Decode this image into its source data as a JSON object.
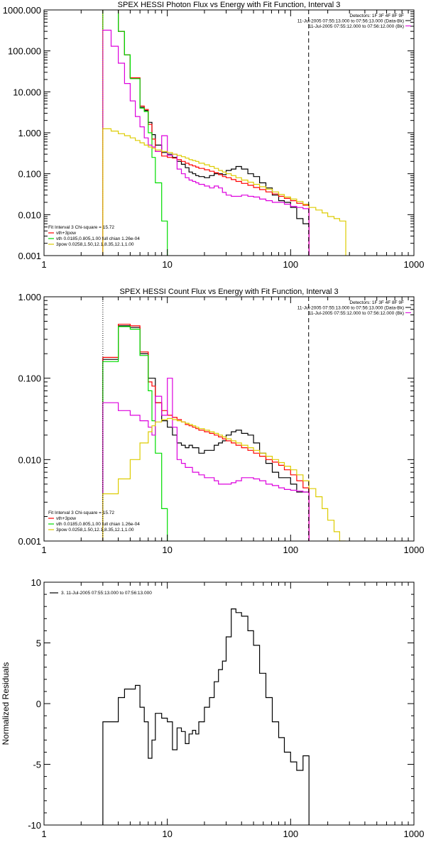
{
  "chart_data": [
    {
      "type": "line",
      "title": "SPEX HESSI Photon Flux vs Energy with Fit Function, Interval 3",
      "xscale": "log",
      "yscale": "log",
      "xlim": [
        1,
        1000
      ],
      "ylim": [
        0.001,
        1000
      ],
      "x_ticks": [
        {
          "v": 1,
          "label": "1"
        },
        {
          "v": 10,
          "label": "10"
        },
        {
          "v": 100,
          "label": "100"
        },
        {
          "v": 1000,
          "label": "1000"
        }
      ],
      "y_ticks": [
        {
          "v": 0.001,
          "label": "0.001"
        },
        {
          "v": 0.01,
          "label": "0.010"
        },
        {
          "v": 0.1,
          "label": "0.100"
        },
        {
          "v": 1,
          "label": "1.000"
        },
        {
          "v": 10,
          "label": "10.000"
        },
        {
          "v": 100,
          "label": "100.000"
        },
        {
          "v": 1000,
          "label": "1000.000"
        }
      ],
      "header": [
        "Detectors: 1F 3F 4F 8F 9F",
        "11-Jul-2005 07:55:13.000 to 07:56:13.000 (Data-Bk)",
        "11-Jul-2005 07:55:12.000 to 07:56:12.000 (Bk)"
      ],
      "legend_title": "Fit Interval 3   Chi-square = 15.72",
      "legend": [
        {
          "label": "vth+3pow",
          "color": "#ff0000"
        },
        {
          "label": "vth 0.0185,0.805,1.00  full chian 1.26e-04",
          "color": "#00dd00"
        },
        {
          "label": "3pow 0.0258,1.50,12.1,8.35,12.1,1.00",
          "color": "#ddcc00"
        }
      ],
      "vlines": [
        {
          "x": 3,
          "color": "#ff8800",
          "dash": "1,2"
        },
        {
          "x": 140,
          "color": "#000000",
          "dash": "6,4"
        }
      ],
      "series": [
        {
          "color": "#000000",
          "edges": [
            3,
            3.5,
            4,
            4.5,
            5,
            5.5,
            6,
            6.5,
            7,
            7.5,
            8,
            9,
            10,
            11,
            12,
            13,
            14,
            15,
            16,
            17,
            18,
            20,
            22,
            24,
            26,
            28,
            30,
            33,
            36,
            40,
            45,
            50,
            56,
            63,
            71,
            80,
            89,
            100,
            112,
            126,
            141
          ],
          "values": [
            1100,
            1050,
            300,
            80,
            22,
            22,
            4.2,
            3.5,
            1.8,
            0.9,
            0.5,
            0.33,
            0.3,
            0.25,
            0.2,
            0.17,
            0.14,
            0.11,
            0.1,
            0.09,
            0.085,
            0.08,
            0.09,
            0.1,
            0.1,
            0.095,
            0.12,
            0.13,
            0.15,
            0.13,
            0.1,
            0.085,
            0.06,
            0.045,
            0.03,
            0.022,
            0.02,
            0.015,
            0.008,
            0.006
          ]
        },
        {
          "color": "#ff0000",
          "edges": [
            3,
            3.5,
            4,
            4.5,
            5,
            5.5,
            6,
            6.5,
            7,
            7.5,
            8,
            9,
            10,
            11,
            12,
            13,
            14,
            15,
            16,
            17,
            18,
            20,
            22,
            24,
            26,
            28,
            30,
            33,
            36,
            40,
            45,
            50,
            56,
            63,
            71,
            80,
            89,
            100,
            112,
            126,
            141
          ],
          "values": [
            1200,
            1100,
            300,
            80,
            22,
            22,
            4.5,
            3.7,
            1.6,
            0.7,
            0.35,
            0.27,
            0.25,
            0.24,
            0.22,
            0.2,
            0.18,
            0.165,
            0.155,
            0.145,
            0.135,
            0.125,
            0.115,
            0.105,
            0.095,
            0.085,
            0.08,
            0.072,
            0.065,
            0.058,
            0.052,
            0.046,
            0.041,
            0.036,
            0.032,
            0.028,
            0.025,
            0.022,
            0.019,
            0.017
          ]
        },
        {
          "color": "#00dd00",
          "edges": [
            3,
            3.5,
            4,
            4.5,
            5,
            5.5,
            6,
            6.5,
            7,
            7.5,
            8,
            9,
            10,
            11
          ],
          "values": [
            1150,
            1080,
            300,
            80,
            21,
            21,
            4.0,
            3.3,
            1.0,
            0.25,
            0.06,
            0.007,
            0.0005
          ]
        },
        {
          "color": "#dd00dd",
          "edges": [
            3,
            3.5,
            4,
            4.5,
            5,
            5.5,
            6,
            6.5,
            7,
            7.5,
            8,
            9,
            10,
            11,
            12,
            13,
            14,
            15,
            16,
            17,
            18,
            20,
            22,
            24,
            26,
            28,
            30,
            33,
            36,
            40,
            45,
            50,
            56,
            63,
            71,
            80,
            89,
            100,
            112,
            126,
            141
          ],
          "values": [
            320,
            130,
            50,
            16,
            6,
            2.5,
            1.4,
            0.75,
            0.5,
            0.45,
            0.35,
            0.85,
            0.28,
            0.3,
            0.13,
            0.1,
            0.08,
            0.07,
            0.065,
            0.06,
            0.055,
            0.05,
            0.045,
            0.05,
            0.045,
            0.035,
            0.03,
            0.028,
            0.028,
            0.03,
            0.028,
            0.027,
            0.024,
            0.022,
            0.02,
            0.02,
            0.018,
            0.016,
            0.015,
            0.014
          ]
        },
        {
          "color": "#ddcc00",
          "edges": [
            3,
            3.5,
            4,
            4.5,
            5,
            5.5,
            6,
            6.5,
            7,
            7.5,
            8,
            9,
            10,
            11,
            12,
            13,
            14,
            15,
            16,
            17,
            18,
            20,
            22,
            24,
            26,
            28,
            30,
            33,
            36,
            40,
            45,
            50,
            56,
            63,
            71,
            80,
            89,
            100,
            112,
            126,
            141,
            160,
            180,
            200,
            225,
            250,
            280
          ],
          "values": [
            1.25,
            1.1,
            0.95,
            0.85,
            0.75,
            0.65,
            0.57,
            0.5,
            0.45,
            0.42,
            0.38,
            0.35,
            0.33,
            0.3,
            0.28,
            0.26,
            0.24,
            0.22,
            0.21,
            0.2,
            0.18,
            0.165,
            0.15,
            0.135,
            0.12,
            0.11,
            0.1,
            0.09,
            0.08,
            0.07,
            0.062,
            0.055,
            0.048,
            0.042,
            0.036,
            0.031,
            0.027,
            0.024,
            0.021,
            0.018,
            0.015,
            0.013,
            0.011,
            0.009,
            0.008,
            0.007
          ]
        }
      ]
    },
    {
      "type": "line",
      "title": "SPEX HESSI Count Flux vs Energy with Fit Function, Interval 3",
      "xscale": "log",
      "yscale": "log",
      "xlim": [
        1,
        1000
      ],
      "ylim": [
        0.001,
        1
      ],
      "x_ticks": [
        {
          "v": 1,
          "label": "1"
        },
        {
          "v": 10,
          "label": "10"
        },
        {
          "v": 100,
          "label": "100"
        },
        {
          "v": 1000,
          "label": "1000"
        }
      ],
      "y_ticks": [
        {
          "v": 0.001,
          "label": "0.001"
        },
        {
          "v": 0.01,
          "label": "0.010"
        },
        {
          "v": 0.1,
          "label": "0.100"
        },
        {
          "v": 1,
          "label": "1.000"
        }
      ],
      "header": [
        "Detectors: 1F 3F 4F 8F 9F",
        "11-Jul-2005 07:55:13.000 to 07:56:13.000 (Data-Bk)",
        "11-Jul-2005 07:55:12.000 to 07:56:12.000 (Bk)"
      ],
      "legend_title": "Fit Interval 3   Chi-square = 15.72",
      "legend": [
        {
          "label": "vth+3pow",
          "color": "#ff0000"
        },
        {
          "label": "vth 0.0185,0.805,1.00  full chian 1.26e-04",
          "color": "#00dd00"
        },
        {
          "label": "3pow 0.0258,1.50,12.1,8.35,12.1,1.00",
          "color": "#ddcc00"
        }
      ],
      "vlines": [
        {
          "x": 3,
          "color": "#000000",
          "dash": "1,2"
        },
        {
          "x": 140,
          "color": "#000000",
          "dash": "6,4"
        }
      ],
      "series": [
        {
          "color": "#000000",
          "edges": [
            3,
            3.5,
            4,
            4.5,
            5,
            5.5,
            6,
            6.5,
            7,
            7.5,
            8,
            9,
            10,
            11,
            12,
            13,
            14,
            15,
            16,
            17,
            18,
            20,
            22,
            24,
            26,
            28,
            30,
            33,
            36,
            40,
            45,
            50,
            56,
            63,
            71,
            80,
            89,
            100,
            112,
            126,
            141
          ],
          "values": [
            0.17,
            0.17,
            0.44,
            0.44,
            0.42,
            0.42,
            0.2,
            0.2,
            0.1,
            0.1,
            0.05,
            0.03,
            0.025,
            0.02,
            0.016,
            0.015,
            0.014,
            0.015,
            0.014,
            0.014,
            0.012,
            0.013,
            0.013,
            0.015,
            0.016,
            0.017,
            0.02,
            0.022,
            0.023,
            0.021,
            0.02,
            0.016,
            0.012,
            0.009,
            0.007,
            0.006,
            0.006,
            0.005,
            0.004,
            0.004
          ]
        },
        {
          "color": "#ff0000",
          "edges": [
            3,
            3.5,
            4,
            4.5,
            5,
            5.5,
            6,
            6.5,
            7,
            7.5,
            8,
            9,
            10,
            11,
            12,
            13,
            14,
            15,
            16,
            17,
            18,
            20,
            22,
            24,
            26,
            28,
            30,
            33,
            36,
            40,
            45,
            50,
            56,
            63,
            71,
            80,
            89,
            100,
            112,
            126,
            141
          ],
          "values": [
            0.18,
            0.18,
            0.46,
            0.46,
            0.44,
            0.44,
            0.21,
            0.21,
            0.09,
            0.08,
            0.05,
            0.04,
            0.035,
            0.033,
            0.031,
            0.029,
            0.027,
            0.026,
            0.025,
            0.024,
            0.023,
            0.022,
            0.021,
            0.02,
            0.019,
            0.018,
            0.017,
            0.016,
            0.015,
            0.014,
            0.013,
            0.012,
            0.011,
            0.01,
            0.0093,
            0.0085,
            0.0075,
            0.0065,
            0.0055,
            0.0045
          ]
        },
        {
          "color": "#00dd00",
          "edges": [
            3,
            3.5,
            4,
            4.5,
            5,
            5.5,
            6,
            6.5,
            7,
            7.5,
            8,
            9,
            10,
            11
          ],
          "values": [
            0.16,
            0.16,
            0.43,
            0.43,
            0.4,
            0.4,
            0.19,
            0.19,
            0.07,
            0.03,
            0.012,
            0.0025,
            0.0005
          ]
        },
        {
          "color": "#dd00dd",
          "edges": [
            3,
            3.5,
            4,
            4.5,
            5,
            5.5,
            6,
            6.5,
            7,
            7.5,
            8,
            9,
            10,
            11,
            12,
            13,
            14,
            15,
            16,
            17,
            18,
            20,
            22,
            24,
            26,
            28,
            30,
            33,
            36,
            40,
            45,
            50,
            56,
            63,
            71,
            80,
            89,
            100,
            112,
            126,
            141
          ],
          "values": [
            0.05,
            0.05,
            0.04,
            0.04,
            0.035,
            0.035,
            0.03,
            0.03,
            0.025,
            0.02,
            0.06,
            0.035,
            0.1,
            0.025,
            0.01,
            0.009,
            0.008,
            0.008,
            0.007,
            0.007,
            0.0065,
            0.006,
            0.006,
            0.0055,
            0.005,
            0.005,
            0.005,
            0.0052,
            0.0055,
            0.006,
            0.006,
            0.0058,
            0.0055,
            0.005,
            0.0048,
            0.0045,
            0.0043,
            0.0042,
            0.0041,
            0.004
          ]
        },
        {
          "color": "#ddcc00",
          "edges": [
            3,
            3.5,
            4,
            4.5,
            5,
            5.5,
            6,
            6.5,
            7,
            7.5,
            8,
            9,
            10,
            11,
            12,
            13,
            14,
            15,
            16,
            17,
            18,
            20,
            22,
            24,
            26,
            28,
            30,
            33,
            36,
            40,
            45,
            50,
            56,
            63,
            71,
            80,
            89,
            100,
            112,
            126,
            141,
            160,
            180,
            200,
            225,
            250,
            280
          ],
          "values": [
            0.0038,
            0.0038,
            0.0058,
            0.0058,
            0.01,
            0.01,
            0.016,
            0.016,
            0.022,
            0.026,
            0.029,
            0.031,
            0.032,
            0.031,
            0.03,
            0.029,
            0.028,
            0.027,
            0.026,
            0.025,
            0.024,
            0.023,
            0.022,
            0.021,
            0.02,
            0.019,
            0.018,
            0.017,
            0.016,
            0.015,
            0.014,
            0.013,
            0.012,
            0.011,
            0.01,
            0.0092,
            0.0083,
            0.0075,
            0.0065,
            0.0055,
            0.0044,
            0.0035,
            0.0025,
            0.0018,
            0.0013,
            0.001
          ]
        }
      ]
    },
    {
      "type": "line",
      "title": "",
      "ylabel": "Normalized Residuals",
      "xscale": "log",
      "yscale": "linear",
      "xlim": [
        1,
        1000
      ],
      "ylim": [
        -10,
        10
      ],
      "x_ticks": [
        {
          "v": 1,
          "label": "1"
        },
        {
          "v": 10,
          "label": "10"
        },
        {
          "v": 100,
          "label": "100"
        },
        {
          "v": 1000,
          "label": "1000"
        }
      ],
      "y_ticks": [
        {
          "v": -10,
          "label": "-10"
        },
        {
          "v": -5,
          "label": "-5"
        },
        {
          "v": 0,
          "label": "0"
        },
        {
          "v": 5,
          "label": "5"
        },
        {
          "v": 10,
          "label": "10"
        }
      ],
      "header": [],
      "legend_title": "",
      "legend": [
        {
          "label": "3. 11-Jul-2005 07:55:13.000 to 07:56:13.000",
          "color": "#000000"
        }
      ],
      "vlines": [],
      "series": [
        {
          "color": "#000000",
          "edges": [
            3,
            3.5,
            4,
            4.5,
            5,
            5.5,
            6,
            6.5,
            7,
            7.5,
            8,
            9,
            10,
            11,
            12,
            13,
            14,
            15,
            16,
            17,
            18,
            20,
            22,
            24,
            26,
            28,
            30,
            33,
            36,
            40,
            45,
            50,
            56,
            63,
            71,
            80,
            89,
            100,
            112,
            126,
            141
          ],
          "values": [
            -1.5,
            -1.5,
            0.5,
            1.2,
            1.2,
            1.5,
            -0.3,
            -1.5,
            -4.5,
            -3.0,
            -0.8,
            -1.2,
            -1.5,
            -3.8,
            -2.0,
            -2.3,
            -3.3,
            -2.5,
            -2.2,
            -2.5,
            -1.5,
            -0.3,
            0.5,
            1.8,
            2.8,
            3.5,
            5.5,
            7.8,
            7.5,
            7.2,
            6.0,
            4.8,
            2.5,
            0.5,
            -1.5,
            -2.8,
            -4.0,
            -4.8,
            -5.5,
            -4.3
          ]
        }
      ]
    }
  ]
}
